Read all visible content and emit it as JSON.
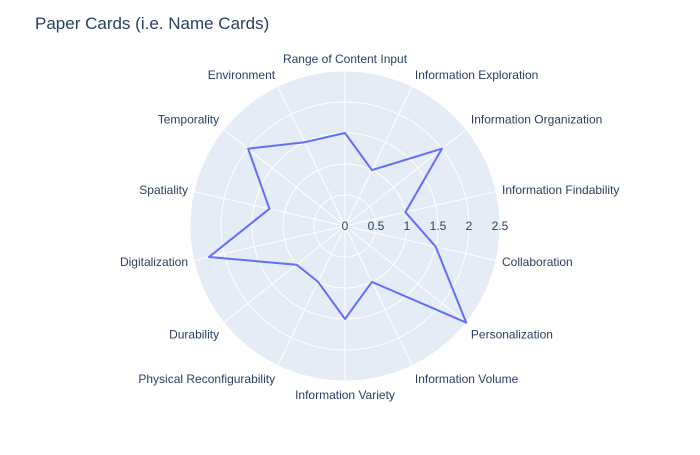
{
  "chart_data": {
    "type": "radar",
    "title": "Paper Cards (i.e. Name Cards)",
    "categories": [
      "Range of Content Input",
      "Information Exploration",
      "Information Organization",
      "Information Findability",
      "Collaboration",
      "Personalization",
      "Information Volume",
      "Information Variety",
      "Physical Reconfigurability",
      "Durability",
      "Digitalization",
      "Spatiality",
      "Temporality",
      "Environment"
    ],
    "series": [
      {
        "values": [
          1.5,
          1.0,
          2.0,
          1.0,
          1.5,
          2.5,
          1.0,
          1.5,
          1.0,
          1.0,
          2.25,
          1.25,
          2.0,
          1.5
        ],
        "color": "#636efa"
      }
    ],
    "radial_range": [
      0,
      2.5
    ],
    "radial_ticks": [
      "0",
      "0.5",
      "1",
      "1.5",
      "2",
      "2.5"
    ],
    "grid": true,
    "bgcolor": "#e5ecf6",
    "gridcolor": "#ffffff"
  }
}
